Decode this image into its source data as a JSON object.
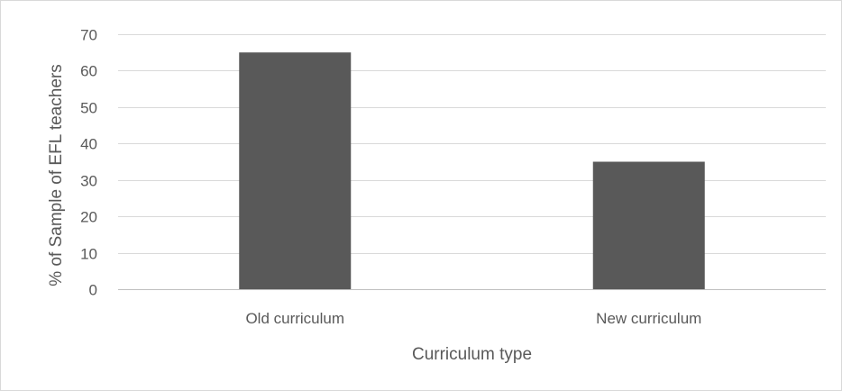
{
  "chart_data": {
    "type": "bar",
    "title": "",
    "xlabel": "Curriculum type",
    "ylabel": "% of Sample of EFL teachers",
    "categories": [
      "Old curriculum",
      "New curriculum"
    ],
    "values": [
      65,
      35
    ],
    "ylim": [
      0,
      70
    ],
    "yticks": [
      0,
      10,
      20,
      30,
      40,
      50,
      60,
      70
    ],
    "grid": true,
    "legend": "none",
    "bar_color": "#595959",
    "grid_color": "#d9d9d9",
    "axis_color": "#bfbfbf",
    "text_color": "#595959"
  }
}
